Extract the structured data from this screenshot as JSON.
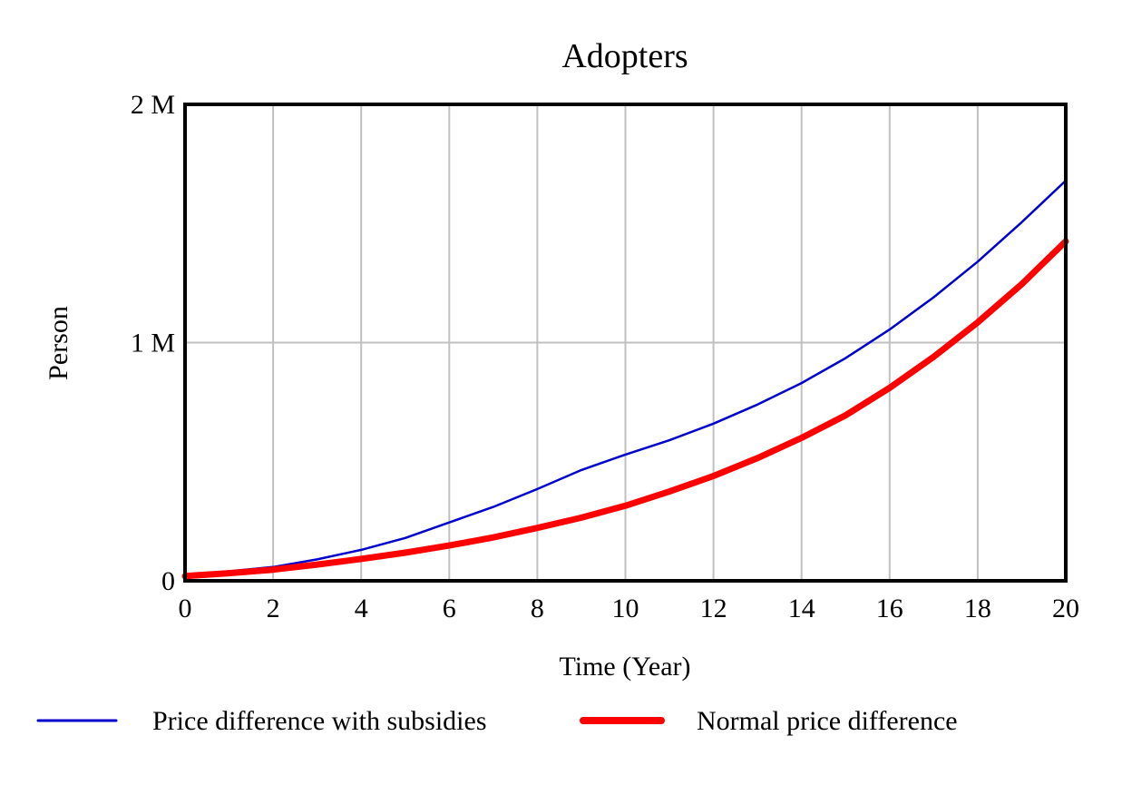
{
  "chart_data": {
    "type": "line",
    "title": "Adopters",
    "xlabel": "Time (Year)",
    "ylabel": "Person",
    "xlim": [
      0,
      20
    ],
    "ylim": [
      0,
      2000000
    ],
    "x_ticks": [
      0,
      2,
      4,
      6,
      8,
      10,
      12,
      14,
      16,
      18,
      20
    ],
    "x_tick_labels": [
      "0",
      "2",
      "4",
      "6",
      "8",
      "10",
      "12",
      "14",
      "16",
      "18",
      "20"
    ],
    "y_ticks": [
      0,
      1000000,
      2000000
    ],
    "y_tick_labels": [
      "0",
      "1 M",
      "2 M"
    ],
    "grid": true,
    "legend_position": "bottom",
    "x": [
      0,
      1,
      2,
      3,
      4,
      5,
      6,
      7,
      8,
      9,
      10,
      11,
      12,
      13,
      14,
      15,
      16,
      17,
      18,
      19,
      20
    ],
    "series": [
      {
        "name": "Price difference with subsidies",
        "color": "#0000cc",
        "style": "thin",
        "values": [
          25000,
          40000,
          58000,
          90000,
          130000,
          180000,
          245000,
          310000,
          385000,
          465000,
          530000,
          590000,
          660000,
          740000,
          830000,
          935000,
          1055000,
          1190000,
          1340000,
          1505000,
          1680000
        ]
      },
      {
        "name": "Normal price difference",
        "color": "#ff0000",
        "style": "thick",
        "values": [
          20000,
          32000,
          47000,
          68000,
          92000,
          118000,
          148000,
          182000,
          222000,
          265000,
          315000,
          375000,
          440000,
          515000,
          600000,
          695000,
          810000,
          940000,
          1085000,
          1245000,
          1425000
        ]
      }
    ]
  }
}
